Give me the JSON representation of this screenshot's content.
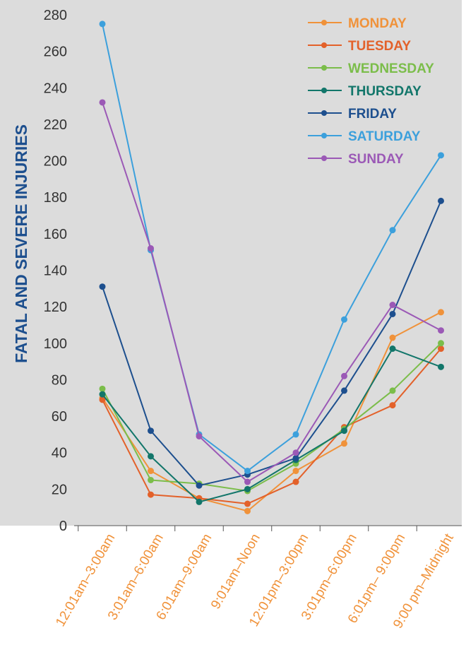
{
  "chart_data": {
    "type": "line",
    "ylabel": "FATAL AND SEVERE INJURIES",
    "xlabel": "",
    "ylim": [
      0,
      280
    ],
    "yticks": [
      0,
      20,
      40,
      60,
      80,
      100,
      120,
      140,
      160,
      180,
      200,
      220,
      240,
      260,
      280
    ],
    "grid": false,
    "legend_position": "top-right",
    "categories": [
      "12:01am–3:00am",
      "3:01am–6:00am",
      "6:01am–9:00am",
      "9:01am–Noon",
      "12:01pm–3:00pm",
      "3:01pm–6:00pm",
      "6:01pm– 9:00pm",
      "9:00 pm–Midnight"
    ],
    "series": [
      {
        "name": "MONDAY",
        "color": "#f0923a",
        "values": [
          70,
          30,
          15,
          8,
          30,
          45,
          103,
          117
        ]
      },
      {
        "name": "TUESDAY",
        "color": "#e3612a",
        "values": [
          69,
          17,
          15,
          12,
          24,
          54,
          66,
          97
        ]
      },
      {
        "name": "WEDNESDAY",
        "color": "#7bbd4a",
        "values": [
          75,
          25,
          23,
          19,
          34,
          53,
          74,
          100
        ]
      },
      {
        "name": "THURSDAY",
        "color": "#12766a",
        "values": [
          72,
          38,
          13,
          20,
          36,
          52,
          97,
          87
        ]
      },
      {
        "name": "FRIDAY",
        "color": "#1d4f8e",
        "values": [
          131,
          52,
          22,
          28,
          37,
          74,
          116,
          178
        ]
      },
      {
        "name": "SATURDAY",
        "color": "#3ca0dc",
        "values": [
          275,
          151,
          50,
          30,
          50,
          113,
          162,
          203
        ]
      },
      {
        "name": "SUNDAY",
        "color": "#9b59b6",
        "values": [
          232,
          152,
          49,
          24,
          40,
          82,
          121,
          107
        ]
      }
    ],
    "colors": {
      "plot_background": "#dcdcdc",
      "ylabel": "#1d4f8e",
      "xtick_labels": "#f0923a",
      "axis": "#555555",
      "ytick_labels": "#333333"
    }
  }
}
